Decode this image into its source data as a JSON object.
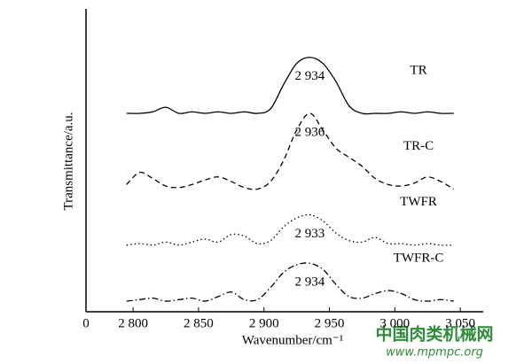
{
  "chart_data": {
    "type": "line",
    "y_label": "Transmittance/a.u.",
    "x_label": "Wavenumber/cm⁻¹",
    "origin_label": "0",
    "x": [
      2795,
      2805,
      2815,
      2825,
      2835,
      2845,
      2855,
      2865,
      2875,
      2885,
      2895,
      2905,
      2915,
      2925,
      2935,
      2945,
      2955,
      2965,
      2975,
      2985,
      2995,
      3005,
      3015,
      3025,
      3035,
      3045
    ],
    "xlim": [
      2764,
      3075
    ],
    "xticks": [
      {
        "value": 2800,
        "label": "2 800"
      },
      {
        "value": 2850,
        "label": "2 850"
      },
      {
        "value": 2900,
        "label": "2 900"
      },
      {
        "value": 2950,
        "label": "2 950"
      },
      {
        "value": 3000,
        "label": "3 000"
      },
      {
        "value": 3050,
        "label": "3 050"
      }
    ],
    "ylim": [
      0,
      100
    ],
    "series": [
      {
        "name": "TR",
        "color": "#000000",
        "dash": "solid",
        "peak_label": "2 934",
        "values": [
          65.5,
          65.5,
          66,
          67.5,
          65.5,
          66,
          65.5,
          66,
          65.5,
          66,
          65.5,
          67,
          75,
          82,
          84,
          82,
          76,
          68,
          65.5,
          65.5,
          65.5,
          66,
          65.5,
          66,
          65.5,
          65.5
        ]
      },
      {
        "name": "TR-C",
        "color": "#000000",
        "dash": "dashed",
        "peak_label": "2 936",
        "values": [
          42,
          46,
          44,
          41.5,
          41,
          42,
          43.5,
          44.5,
          43,
          41,
          40.5,
          43,
          50,
          60,
          65.5,
          60,
          54,
          51,
          48,
          44,
          42,
          41.5,
          42.5,
          44.5,
          43,
          40.5
        ]
      },
      {
        "name": "TWFR",
        "color": "#000000",
        "dash": "dotted",
        "peak_label": "2 933",
        "values": [
          22,
          22.5,
          22,
          23,
          22,
          23,
          24,
          23,
          25.5,
          25,
          22.5,
          23.5,
          28,
          31,
          32,
          30,
          26,
          23.5,
          23,
          24.5,
          22.5,
          22.5,
          22,
          22.5,
          22,
          22
        ]
      },
      {
        "name": "TWFR-C",
        "color": "#000000",
        "dash": "dashdot",
        "peak_label": "2 934",
        "values": [
          3.5,
          4,
          4.5,
          3.5,
          4,
          4.5,
          3.5,
          5,
          6.5,
          4,
          4,
          8,
          13,
          15.5,
          16,
          14,
          9,
          5,
          4.5,
          6,
          7,
          6,
          4,
          3.5,
          4,
          3.5
        ]
      }
    ]
  },
  "watermark": {
    "title": "中国肉类机械网",
    "url": "www.mpmpc.org"
  }
}
